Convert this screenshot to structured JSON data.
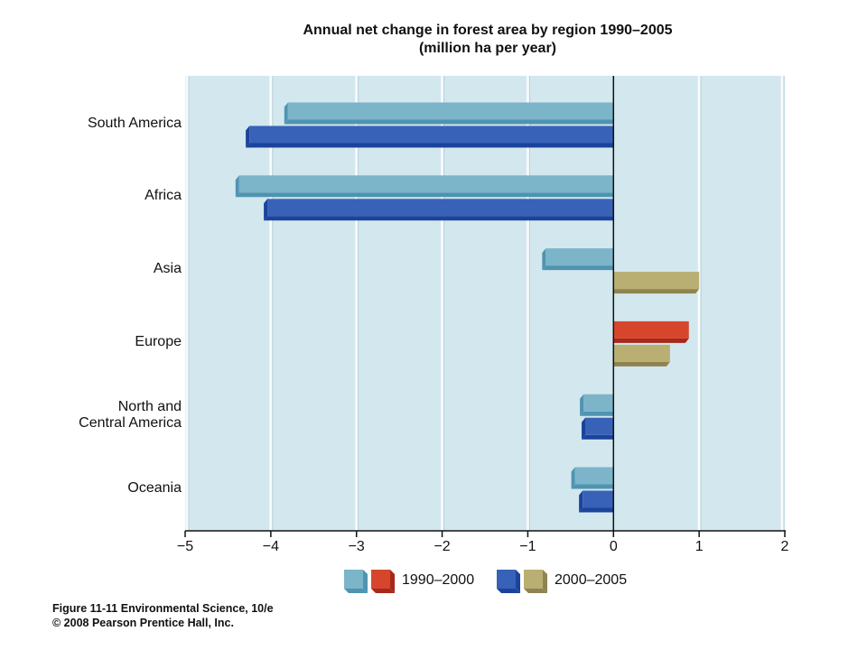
{
  "figure": {
    "caption": "Figure 11-11 Environmental Science, 10/e",
    "copyright": "© 2008 Pearson Prentice Hall, Inc."
  },
  "colors": {
    "page_background": "#ffffff",
    "plot_background": "#d3e7ee",
    "gridline": "#f6fafc",
    "gridline_shadow": "#b8cfd8",
    "axis": "#111111",
    "text": "#111111"
  },
  "chart_data": {
    "type": "bar",
    "horizontal": true,
    "title": "Annual net change in forest area by region 1990–2005",
    "subtitle": "(million ha per year)",
    "categories": [
      "South America",
      "Africa",
      "Asia",
      "Europe",
      "North and\nCentral America",
      "Oceania"
    ],
    "series": [
      {
        "name": "1990–2000",
        "values": [
          -3.8,
          -4.37,
          -0.79,
          0.88,
          -0.35,
          -0.45
        ],
        "fill_negative": "#7cb4c9",
        "shade_negative": "#4f94b1",
        "fill_positive": "#d6462d",
        "shade_positive": "#a8281a"
      },
      {
        "name": "2000–2005",
        "values": [
          -4.25,
          -4.04,
          1.0,
          0.66,
          -0.33,
          -0.36
        ],
        "fill_negative": "#3762b7",
        "shade_negative": "#1c439c",
        "fill_positive": "#b9af73",
        "shade_positive": "#8e8450"
      }
    ],
    "xlim": [
      -5,
      2
    ],
    "xticks": [
      -5,
      -4,
      -3,
      -2,
      -1,
      0,
      1,
      2
    ],
    "xtick_labels": [
      "−5",
      "−4",
      "−3",
      "−2",
      "−1",
      "0",
      "1",
      "2"
    ],
    "grid": true,
    "legend": "bottom"
  }
}
